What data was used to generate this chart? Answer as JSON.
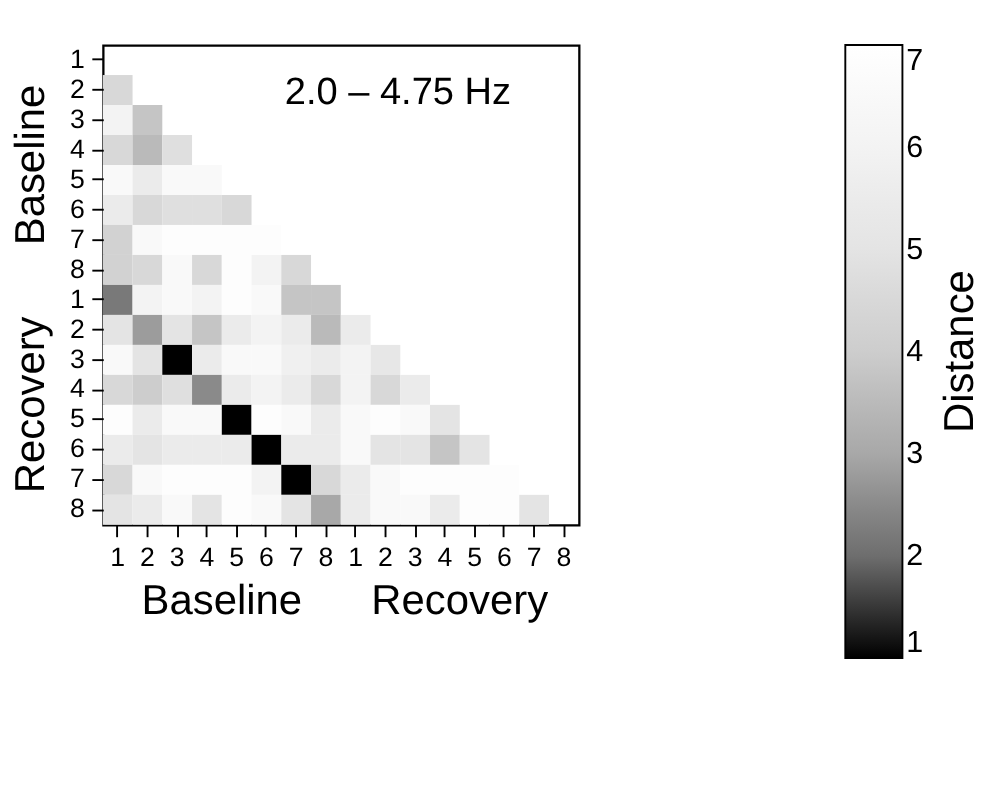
{
  "chart_data": {
    "type": "heatmap",
    "title": "2.0 – 4.75 Hz",
    "clabel": "Distance",
    "categories": [
      "1",
      "2",
      "3",
      "4",
      "5",
      "6",
      "7",
      "8",
      "1",
      "2",
      "3",
      "4",
      "5",
      "6",
      "7",
      "8"
    ],
    "y_categories": [
      "1",
      "2",
      "3",
      "4",
      "5",
      "6",
      "7",
      "8",
      "1",
      "2",
      "3",
      "4",
      "5",
      "6",
      "7",
      "8"
    ],
    "annotations": [
      "Baseline",
      "Recovery",
      "Baseline",
      "Recovery"
    ],
    "cells": [
      [
        null,
        null,
        null,
        null,
        null,
        null,
        null,
        null,
        null,
        null,
        null,
        null,
        null,
        null,
        null,
        null
      ],
      [
        4.5,
        null,
        null,
        null,
        null,
        null,
        null,
        null,
        null,
        null,
        null,
        null,
        null,
        null,
        null,
        null
      ],
      [
        6,
        3.8,
        null,
        null,
        null,
        null,
        null,
        null,
        null,
        null,
        null,
        null,
        null,
        null,
        null,
        null
      ],
      [
        4.5,
        3.5,
        4.8,
        null,
        null,
        null,
        null,
        null,
        null,
        null,
        null,
        null,
        null,
        null,
        null,
        null
      ],
      [
        6.5,
        5.5,
        6.5,
        6.5,
        null,
        null,
        null,
        null,
        null,
        null,
        null,
        null,
        null,
        null,
        null,
        null
      ],
      [
        5.5,
        4.5,
        4.8,
        4.8,
        4.5,
        null,
        null,
        null,
        null,
        null,
        null,
        null,
        null,
        null,
        null,
        null
      ],
      [
        4.2,
        6.5,
        6.8,
        6.8,
        6.8,
        6.8,
        null,
        null,
        null,
        null,
        null,
        null,
        null,
        null,
        null,
        null
      ],
      [
        4.2,
        4.5,
        6.5,
        4.5,
        6.8,
        6,
        4.5,
        null,
        null,
        null,
        null,
        null,
        null,
        null,
        null,
        null
      ],
      [
        2.2,
        6,
        6.5,
        6,
        6.8,
        6.5,
        3.8,
        3.8,
        null,
        null,
        null,
        null,
        null,
        null,
        null,
        null
      ],
      [
        5,
        2.8,
        5,
        3.8,
        5.5,
        6,
        5.5,
        3.5,
        5.5,
        null,
        null,
        null,
        null,
        null,
        null,
        null
      ],
      [
        6.5,
        5,
        1,
        5.5,
        6.5,
        6.5,
        5.8,
        5.5,
        6,
        5.2,
        null,
        null,
        null,
        null,
        null,
        null
      ],
      [
        4.5,
        4,
        4.8,
        2.5,
        5.5,
        6,
        5.5,
        4.5,
        6,
        4.5,
        5.5,
        null,
        null,
        null,
        null,
        null
      ],
      [
        6.8,
        5.5,
        6.5,
        6.5,
        1,
        6.8,
        6.5,
        5.5,
        6.5,
        6.8,
        6.5,
        5,
        null,
        null,
        null,
        null
      ],
      [
        5.5,
        5,
        5.5,
        5.5,
        5.5,
        1,
        5.5,
        5.5,
        6.5,
        5,
        5,
        3.8,
        5,
        null,
        null,
        null
      ],
      [
        4.5,
        6.5,
        6.8,
        6.8,
        6.8,
        6,
        1,
        4.5,
        5.5,
        6.5,
        6.8,
        6.8,
        6.8,
        6.8,
        null,
        null
      ],
      [
        5,
        5.5,
        6.5,
        5,
        6.8,
        6.5,
        5,
        3,
        5.5,
        6.5,
        6.5,
        5.5,
        6.8,
        6.8,
        5,
        null
      ]
    ],
    "clim": [
      1,
      7
    ],
    "cticks": [
      1,
      2,
      3,
      4,
      5,
      6,
      7
    ]
  }
}
